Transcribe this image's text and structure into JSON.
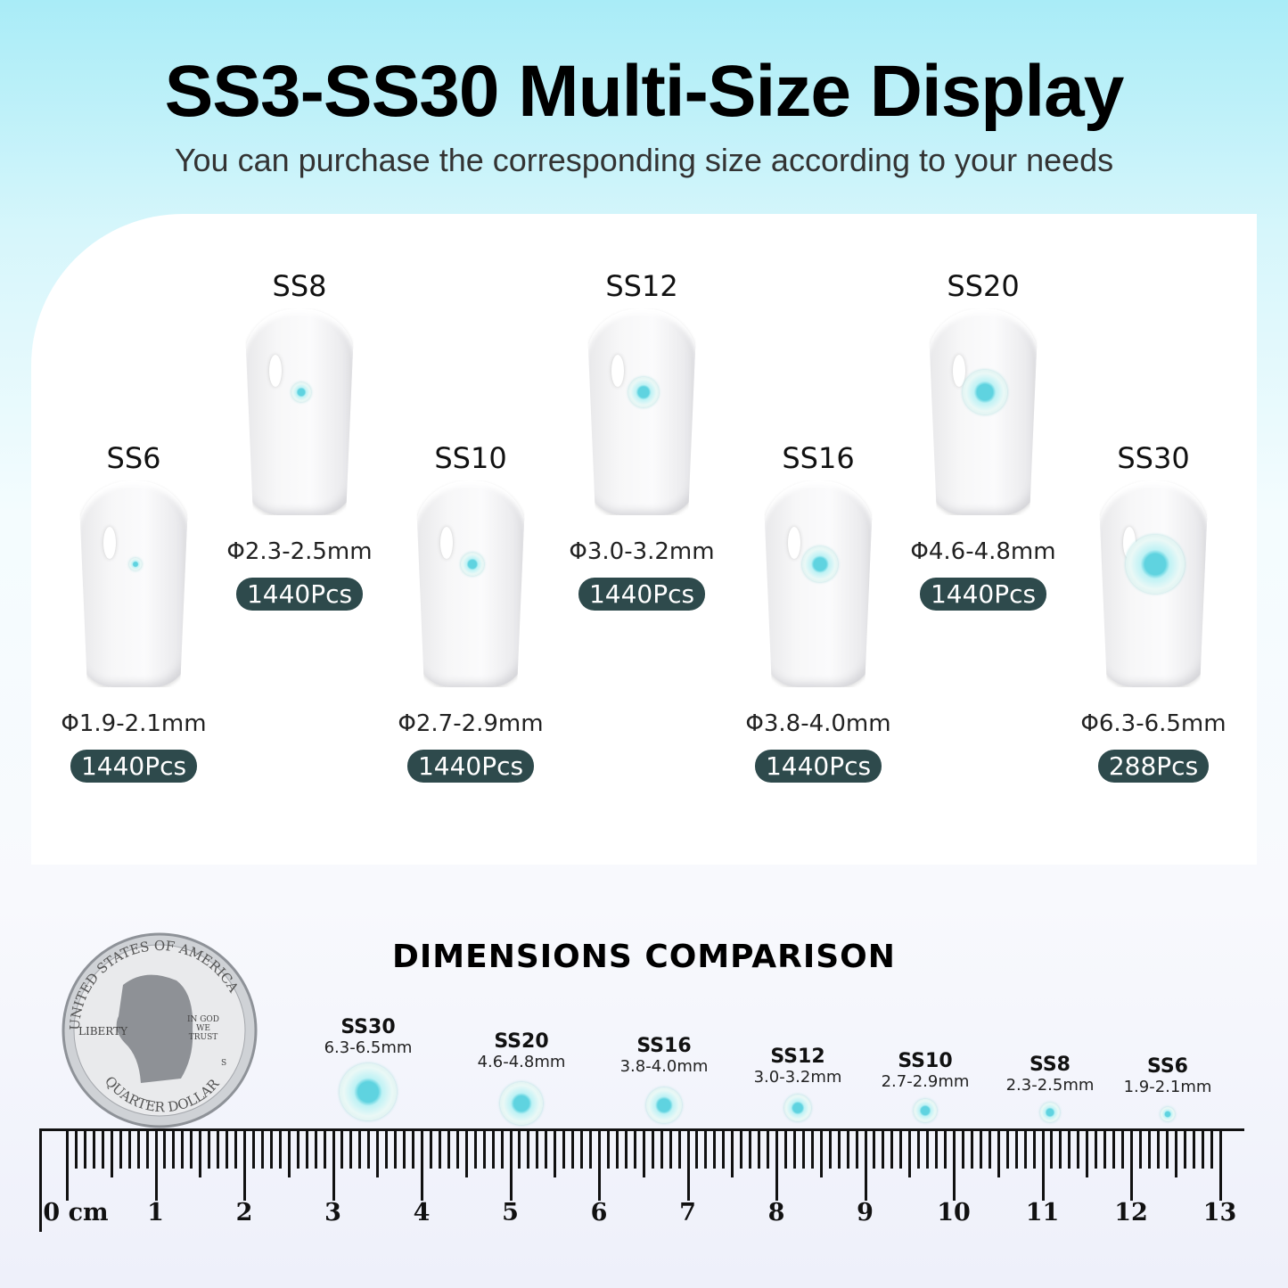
{
  "header": {
    "title": "SS3-SS30 Multi-Size Display",
    "subtitle": "You can purchase the corresponding size according to your needs"
  },
  "items": [
    {
      "name": "SS6",
      "size": "Φ1.9-2.1mm",
      "count": "1440Pcs"
    },
    {
      "name": "SS8",
      "size": "Φ2.3-2.5mm",
      "count": "1440Pcs"
    },
    {
      "name": "SS10",
      "size": "Φ2.7-2.9mm",
      "count": "1440Pcs"
    },
    {
      "name": "SS12",
      "size": "Φ3.0-3.2mm",
      "count": "1440Pcs"
    },
    {
      "name": "SS16",
      "size": "Φ3.8-4.0mm",
      "count": "1440Pcs"
    },
    {
      "name": "SS20",
      "size": "Φ4.6-4.8mm",
      "count": "1440Pcs"
    },
    {
      "name": "SS30",
      "size": "Φ6.3-6.5mm",
      "count": "288Pcs"
    }
  ],
  "comparison": {
    "title": "DIMENSIONS COMPARISON",
    "items": [
      {
        "name": "SS30",
        "size": "6.3-6.5mm"
      },
      {
        "name": "SS20",
        "size": "4.6-4.8mm"
      },
      {
        "name": "SS16",
        "size": "3.8-4.0mm"
      },
      {
        "name": "SS12",
        "size": "3.0-3.2mm"
      },
      {
        "name": "SS10",
        "size": "2.7-2.9mm"
      },
      {
        "name": "SS8",
        "size": "2.3-2.5mm"
      },
      {
        "name": "SS6",
        "size": "1.9-2.1mm"
      }
    ]
  },
  "coin": {
    "top_text": "UNITED STATES OF AMERICA",
    "motto": "IN GOD WE TRUST",
    "liberty": "LIBERTY",
    "bottom_text": "QUARTER DOLLAR",
    "mint": "S"
  },
  "ruler": {
    "unit": "cm",
    "labels": [
      "0 cm",
      "1",
      "2",
      "3",
      "4",
      "5",
      "6",
      "7",
      "8",
      "9",
      "10",
      "11",
      "12",
      "13"
    ]
  },
  "colors": {
    "badge": "#2e4a4c",
    "gem": "#5fd3e0"
  }
}
